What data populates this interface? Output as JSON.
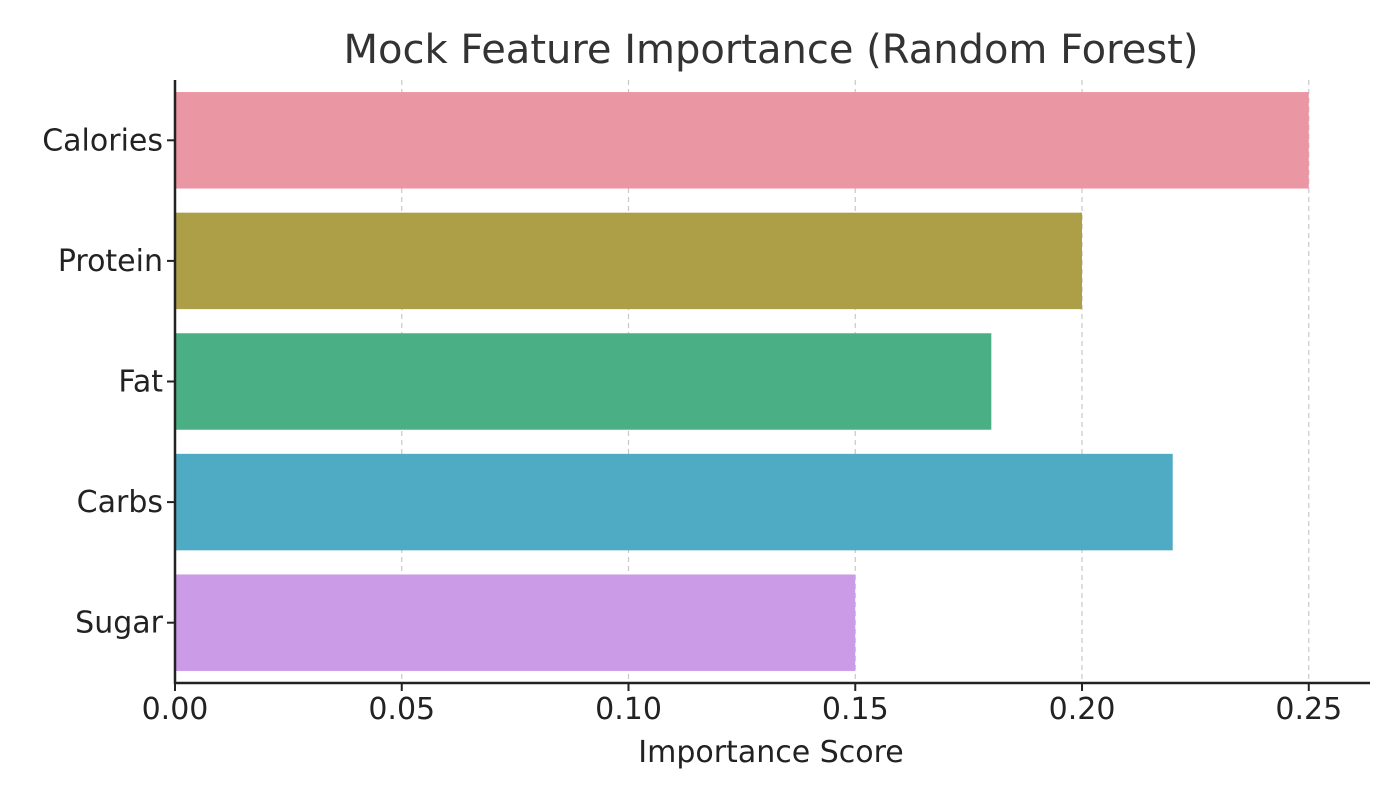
{
  "chart_data": {
    "type": "bar",
    "orientation": "horizontal",
    "title": "Mock Feature Importance (Random Forest)",
    "xlabel": "Importance Score",
    "ylabel": "",
    "categories": [
      "Calories",
      "Protein",
      "Fat",
      "Carbs",
      "Sugar"
    ],
    "values": [
      0.25,
      0.2,
      0.18,
      0.22,
      0.15
    ],
    "colors": [
      "#ea96a3",
      "#ad9f48",
      "#4aaf85",
      "#4fabc4",
      "#cc9be8"
    ],
    "xlim": [
      0,
      0.2635
    ],
    "xticks": [
      0.0,
      0.05,
      0.1,
      0.15,
      0.2,
      0.25
    ],
    "xtick_labels": [
      "0.00",
      "0.05",
      "0.10",
      "0.15",
      "0.20",
      "0.25"
    ],
    "grid": "x-dashed",
    "legend": "none"
  }
}
